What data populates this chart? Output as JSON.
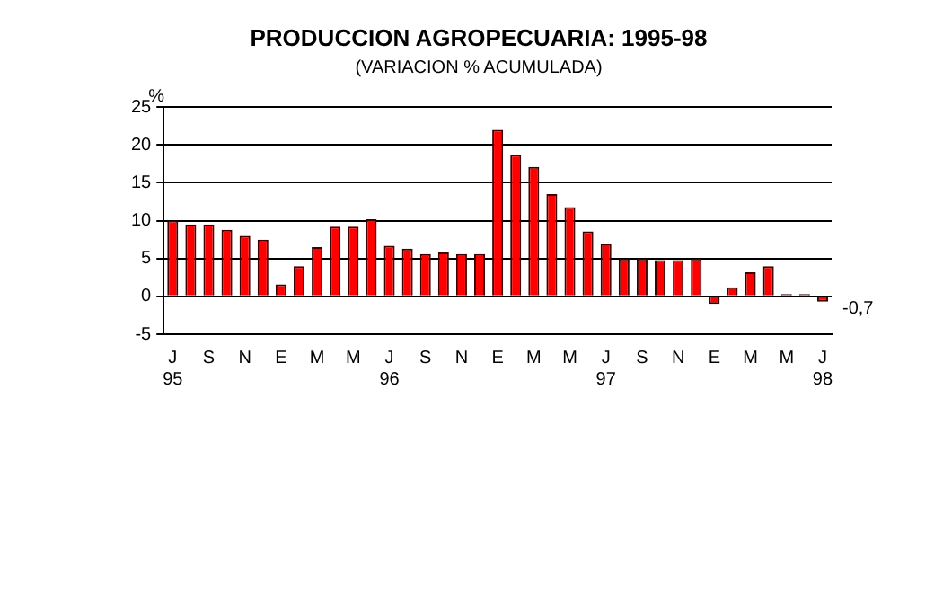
{
  "chart_data": {
    "type": "bar",
    "title": "PRODUCCION AGROPECUARIA: 1995-98",
    "subtitle": "(VARIACION % ACUMULADA)",
    "ylabel": "%",
    "categories": [
      "J\n95",
      null,
      "S",
      null,
      "N",
      null,
      "E",
      null,
      "M",
      null,
      "M",
      null,
      "J\n96",
      null,
      "S",
      null,
      "N",
      null,
      "E",
      null,
      "M",
      null,
      "M",
      null,
      "J\n97",
      null,
      "S",
      null,
      "N",
      null,
      "E",
      null,
      "M",
      null,
      "M",
      null,
      "J\n98"
    ],
    "values": [
      10,
      9.5,
      9.5,
      8.8,
      8,
      7.5,
      1.6,
      4,
      6.5,
      9.2,
      9.2,
      10.2,
      6.7,
      6.3,
      5.6,
      5.8,
      5.6,
      5.6,
      22,
      18.7,
      17.1,
      13.5,
      11.8,
      8.6,
      7,
      5,
      5,
      4.8,
      4.8,
      5,
      -1,
      1.2,
      3.2,
      4,
      0.3,
      0.3,
      -0.7
    ],
    "color": "#ff0000",
    "ylim": [
      -5,
      25
    ],
    "yticks": [
      -5,
      0,
      5,
      10,
      15,
      20,
      25
    ],
    "grid": "y",
    "annotations": [
      "-0,7"
    ]
  }
}
